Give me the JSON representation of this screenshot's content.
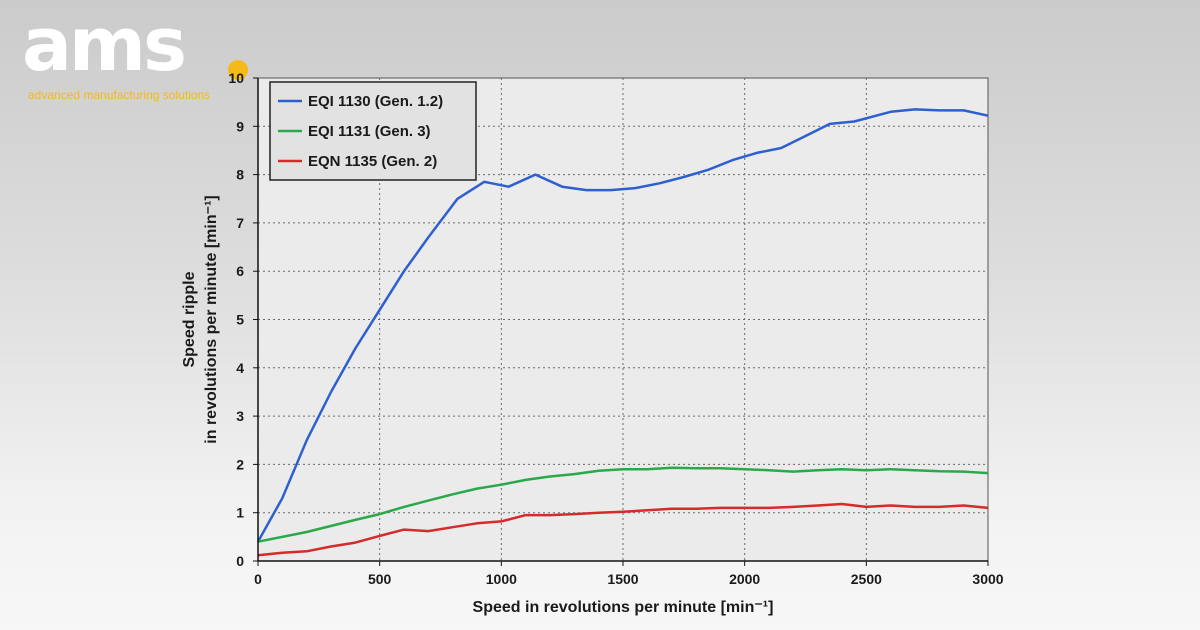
{
  "brand": {
    "logo_text": "ams",
    "tagline": "advanced manufacturing solutions",
    "logo_color": "#ffffff",
    "accent_color": "#f5b919"
  },
  "chart_data": {
    "type": "line",
    "title": "",
    "xlabel": "Speed in revolutions per minute [min⁻¹]",
    "ylabel_line1": "Speed ripple",
    "ylabel_line2": "in revolutions per minute [min⁻¹]",
    "xlim": [
      0,
      3000
    ],
    "ylim": [
      0,
      10
    ],
    "x_ticks": [
      0,
      500,
      1000,
      1500,
      2000,
      2500,
      3000
    ],
    "y_ticks": [
      0,
      1,
      2,
      3,
      4,
      5,
      6,
      7,
      8,
      9,
      10
    ],
    "grid": true,
    "legend_position": "top-left",
    "series": [
      {
        "name": "EQI 1130 (Gen. 1.2)",
        "color": "#2e5fd0",
        "x": [
          0,
          100,
          200,
          300,
          400,
          500,
          600,
          700,
          820,
          930,
          1030,
          1140,
          1250,
          1350,
          1450,
          1550,
          1650,
          1750,
          1850,
          1950,
          2050,
          2150,
          2250,
          2350,
          2450,
          2600,
          2700,
          2800,
          2900,
          3000
        ],
        "y": [
          0.4,
          1.3,
          2.5,
          3.5,
          4.4,
          5.2,
          6.0,
          6.7,
          7.5,
          7.85,
          7.75,
          8.0,
          7.75,
          7.68,
          7.68,
          7.72,
          7.82,
          7.95,
          8.1,
          8.3,
          8.45,
          8.55,
          8.8,
          9.05,
          9.1,
          9.3,
          9.35,
          9.33,
          9.33,
          9.22
        ]
      },
      {
        "name": "EQI 1131 (Gen. 3)",
        "color": "#2aa84a",
        "x": [
          0,
          200,
          400,
          500,
          600,
          700,
          800,
          900,
          1000,
          1100,
          1200,
          1300,
          1400,
          1500,
          1600,
          1700,
          1800,
          1900,
          2000,
          2100,
          2200,
          2300,
          2400,
          2500,
          2600,
          2700,
          2800,
          2900,
          3000
        ],
        "y": [
          0.4,
          0.6,
          0.85,
          0.97,
          1.12,
          1.25,
          1.38,
          1.5,
          1.58,
          1.68,
          1.75,
          1.8,
          1.87,
          1.9,
          1.9,
          1.93,
          1.92,
          1.92,
          1.9,
          1.88,
          1.85,
          1.88,
          1.9,
          1.88,
          1.9,
          1.88,
          1.86,
          1.85,
          1.82
        ]
      },
      {
        "name": "EQN 1135 (Gen. 2)",
        "color": "#d72a2a",
        "x": [
          0,
          100,
          200,
          300,
          400,
          500,
          600,
          700,
          800,
          900,
          1000,
          1100,
          1200,
          1300,
          1400,
          1500,
          1600,
          1700,
          1800,
          1900,
          2000,
          2100,
          2200,
          2300,
          2400,
          2500,
          2600,
          2700,
          2800,
          2900,
          3000
        ],
        "y": [
          0.12,
          0.17,
          0.2,
          0.3,
          0.38,
          0.52,
          0.65,
          0.62,
          0.7,
          0.78,
          0.82,
          0.95,
          0.95,
          0.97,
          1.0,
          1.02,
          1.05,
          1.08,
          1.08,
          1.1,
          1.1,
          1.1,
          1.12,
          1.15,
          1.18,
          1.12,
          1.15,
          1.12,
          1.12,
          1.15,
          1.1
        ]
      }
    ]
  }
}
